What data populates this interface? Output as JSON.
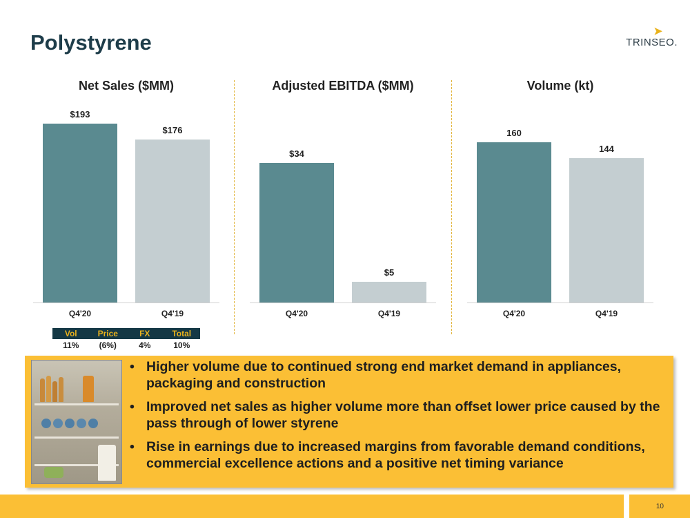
{
  "header": {
    "title": "Polystyrene",
    "logo_text": "TRINSEO."
  },
  "colors": {
    "q4_20": "#5a8a90",
    "q4_19": "#c4ced1",
    "accent": "#fbbf35",
    "table_bg": "#143845",
    "table_text": "#e9b21c"
  },
  "chart_data": [
    {
      "type": "bar",
      "title": "Net Sales ($MM)",
      "categories": [
        "Q4'20",
        "Q4'19"
      ],
      "values": [
        193,
        176
      ],
      "labels": [
        "$193",
        "$176"
      ],
      "ylim": [
        0,
        200
      ]
    },
    {
      "type": "bar",
      "title": "Adjusted EBITDA ($MM)",
      "categories": [
        "Q4'20",
        "Q4'19"
      ],
      "values": [
        34,
        5
      ],
      "labels": [
        "$34",
        "$5"
      ],
      "ylim": [
        0,
        45
      ]
    },
    {
      "type": "bar",
      "title": "Volume (kt)",
      "categories": [
        "Q4'20",
        "Q4'19"
      ],
      "values": [
        160,
        144
      ],
      "labels": [
        "160",
        "144"
      ],
      "ylim": [
        0,
        185
      ]
    }
  ],
  "variance_table": {
    "headers": [
      "Vol",
      "Price",
      "FX",
      "Total"
    ],
    "values": [
      "11%",
      "(6%)",
      "4%",
      "10%"
    ]
  },
  "bullets": [
    "Higher volume due to continued strong end market demand in appliances, packaging and construction",
    "Improved net sales as higher volume more than offset lower price caused by the pass through of lower styrene",
    "Rise in earnings due to increased margins from favorable demand conditions, commercial excellence actions and a positive net timing variance"
  ],
  "footer": {
    "page_number": "10"
  }
}
